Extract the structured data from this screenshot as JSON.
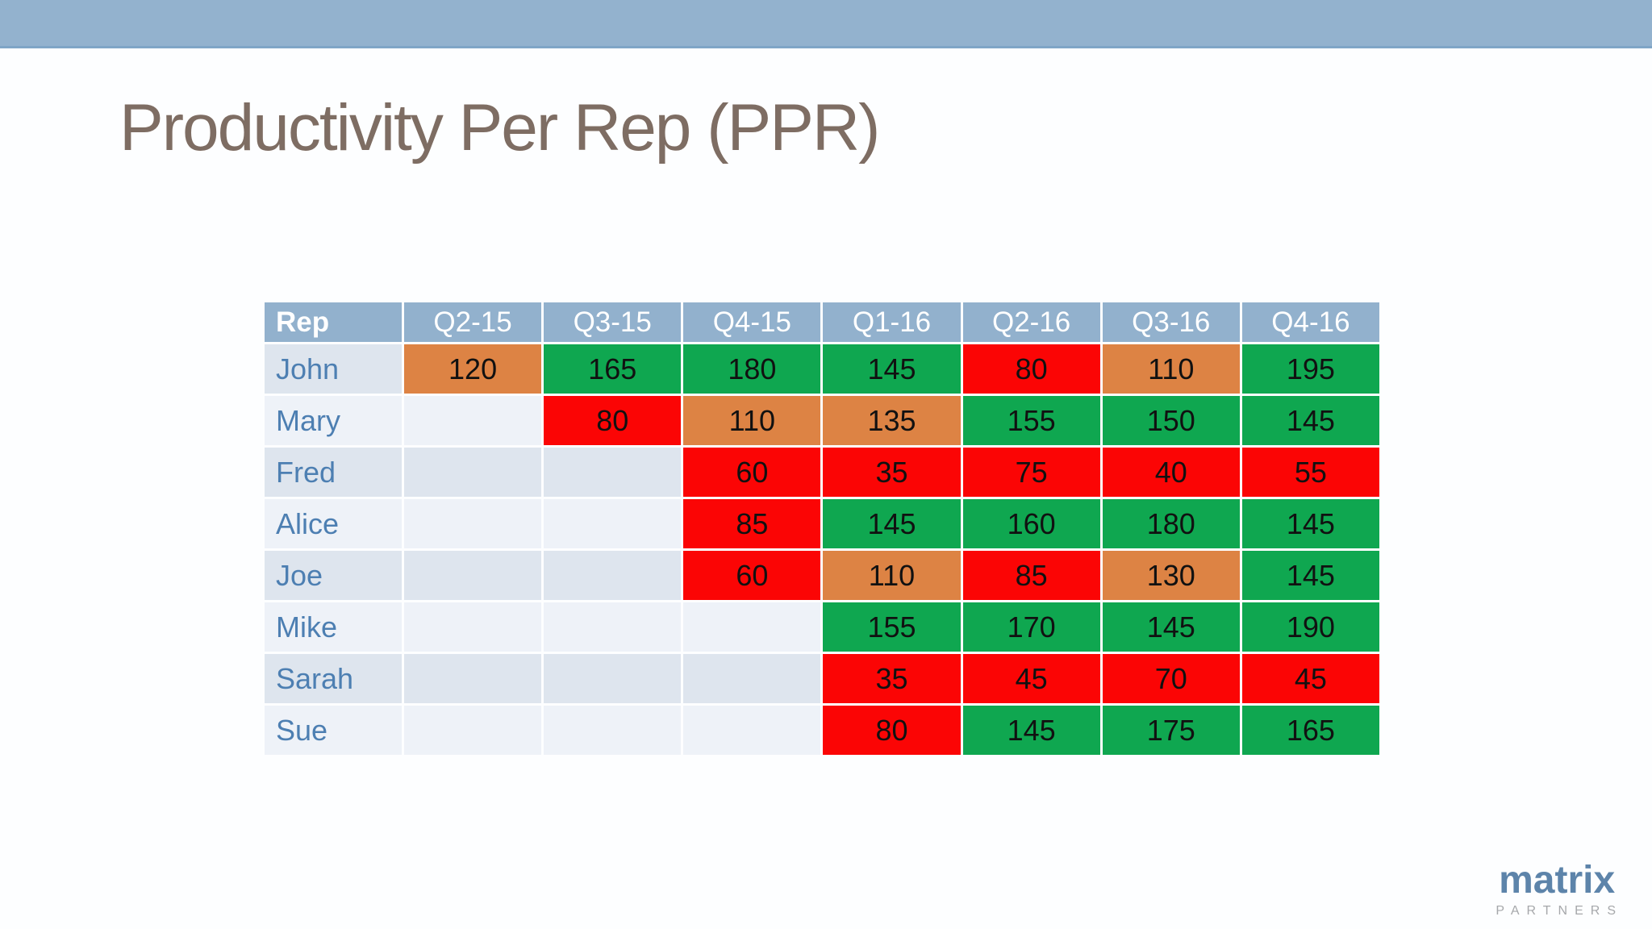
{
  "slide": {
    "title": "Productivity Per Rep (PPR)"
  },
  "logo": {
    "wordmark": "matrix",
    "subtitle": "PARTNERS"
  },
  "colors": {
    "top_band": "#93b2ce",
    "header_bg": "#92b1cd",
    "green": "#0fa750",
    "orange": "#dd8344",
    "red": "#fb0505",
    "row_band_dark": "#dee5ee",
    "row_band_light": "#eef2f8",
    "rep_text": "#4d7fb2",
    "title_text": "#7e6d63",
    "logo_blue": "#5d84aa",
    "logo_gray": "#a6a8ab"
  },
  "table": {
    "columns": [
      "Rep",
      "Q2-15",
      "Q3-15",
      "Q4-15",
      "Q1-16",
      "Q2-16",
      "Q3-16",
      "Q4-16"
    ],
    "rows": [
      {
        "rep": "John",
        "cells": [
          {
            "value": "120",
            "status": "orange"
          },
          {
            "value": "165",
            "status": "green"
          },
          {
            "value": "180",
            "status": "green"
          },
          {
            "value": "145",
            "status": "green"
          },
          {
            "value": "80",
            "status": "red"
          },
          {
            "value": "110",
            "status": "orange"
          },
          {
            "value": "195",
            "status": "green"
          }
        ]
      },
      {
        "rep": "Mary",
        "cells": [
          {
            "value": "",
            "status": "blank"
          },
          {
            "value": "80",
            "status": "red"
          },
          {
            "value": "110",
            "status": "orange"
          },
          {
            "value": "135",
            "status": "orange"
          },
          {
            "value": "155",
            "status": "green"
          },
          {
            "value": "150",
            "status": "green"
          },
          {
            "value": "145",
            "status": "green"
          }
        ]
      },
      {
        "rep": "Fred",
        "cells": [
          {
            "value": "",
            "status": "blank"
          },
          {
            "value": "",
            "status": "blank"
          },
          {
            "value": "60",
            "status": "red"
          },
          {
            "value": "35",
            "status": "red"
          },
          {
            "value": "75",
            "status": "red"
          },
          {
            "value": "40",
            "status": "red"
          },
          {
            "value": "55",
            "status": "red"
          }
        ]
      },
      {
        "rep": "Alice",
        "cells": [
          {
            "value": "",
            "status": "blank"
          },
          {
            "value": "",
            "status": "blank"
          },
          {
            "value": "85",
            "status": "red"
          },
          {
            "value": "145",
            "status": "green"
          },
          {
            "value": "160",
            "status": "green"
          },
          {
            "value": "180",
            "status": "green"
          },
          {
            "value": "145",
            "status": "green"
          }
        ]
      },
      {
        "rep": "Joe",
        "cells": [
          {
            "value": "",
            "status": "blank"
          },
          {
            "value": "",
            "status": "blank"
          },
          {
            "value": "60",
            "status": "red"
          },
          {
            "value": "110",
            "status": "orange"
          },
          {
            "value": "85",
            "status": "red"
          },
          {
            "value": "130",
            "status": "orange"
          },
          {
            "value": "145",
            "status": "green"
          }
        ]
      },
      {
        "rep": "Mike",
        "cells": [
          {
            "value": "",
            "status": "blank"
          },
          {
            "value": "",
            "status": "blank"
          },
          {
            "value": "",
            "status": "blank"
          },
          {
            "value": "155",
            "status": "green"
          },
          {
            "value": "170",
            "status": "green"
          },
          {
            "value": "145",
            "status": "green"
          },
          {
            "value": "190",
            "status": "green"
          }
        ]
      },
      {
        "rep": "Sarah",
        "cells": [
          {
            "value": "",
            "status": "blank"
          },
          {
            "value": "",
            "status": "blank"
          },
          {
            "value": "",
            "status": "blank"
          },
          {
            "value": "35",
            "status": "red"
          },
          {
            "value": "45",
            "status": "red"
          },
          {
            "value": "70",
            "status": "red"
          },
          {
            "value": "45",
            "status": "red"
          }
        ]
      },
      {
        "rep": "Sue",
        "cells": [
          {
            "value": "",
            "status": "blank"
          },
          {
            "value": "",
            "status": "blank"
          },
          {
            "value": "",
            "status": "blank"
          },
          {
            "value": "80",
            "status": "red"
          },
          {
            "value": "145",
            "status": "green"
          },
          {
            "value": "175",
            "status": "green"
          },
          {
            "value": "165",
            "status": "green"
          }
        ]
      }
    ]
  },
  "chart_data": {
    "type": "heatmap",
    "title": "Productivity Per Rep (PPR)",
    "x_labels": [
      "Q2-15",
      "Q3-15",
      "Q4-15",
      "Q1-16",
      "Q2-16",
      "Q3-16",
      "Q4-16"
    ],
    "y_labels": [
      "John",
      "Mary",
      "Fred",
      "Alice",
      "Joe",
      "Mike",
      "Sarah",
      "Sue"
    ],
    "values": [
      [
        120,
        165,
        180,
        145,
        80,
        110,
        195
      ],
      [
        null,
        80,
        110,
        135,
        155,
        150,
        145
      ],
      [
        null,
        null,
        60,
        35,
        75,
        40,
        55
      ],
      [
        null,
        null,
        85,
        145,
        160,
        180,
        145
      ],
      [
        null,
        null,
        60,
        110,
        85,
        130,
        145
      ],
      [
        null,
        null,
        null,
        155,
        170,
        145,
        190
      ],
      [
        null,
        null,
        null,
        35,
        45,
        70,
        45
      ],
      [
        null,
        null,
        null,
        80,
        145,
        175,
        165
      ]
    ],
    "cell_colors": [
      [
        "orange",
        "green",
        "green",
        "green",
        "red",
        "orange",
        "green"
      ],
      [
        null,
        "red",
        "orange",
        "orange",
        "green",
        "green",
        "green"
      ],
      [
        null,
        null,
        "red",
        "red",
        "red",
        "red",
        "red"
      ],
      [
        null,
        null,
        "red",
        "green",
        "green",
        "green",
        "green"
      ],
      [
        null,
        null,
        "red",
        "orange",
        "red",
        "orange",
        "green"
      ],
      [
        null,
        null,
        null,
        "green",
        "green",
        "green",
        "green"
      ],
      [
        null,
        null,
        null,
        "red",
        "red",
        "red",
        "red"
      ],
      [
        null,
        null,
        null,
        "red",
        "green",
        "green",
        "green"
      ]
    ]
  }
}
